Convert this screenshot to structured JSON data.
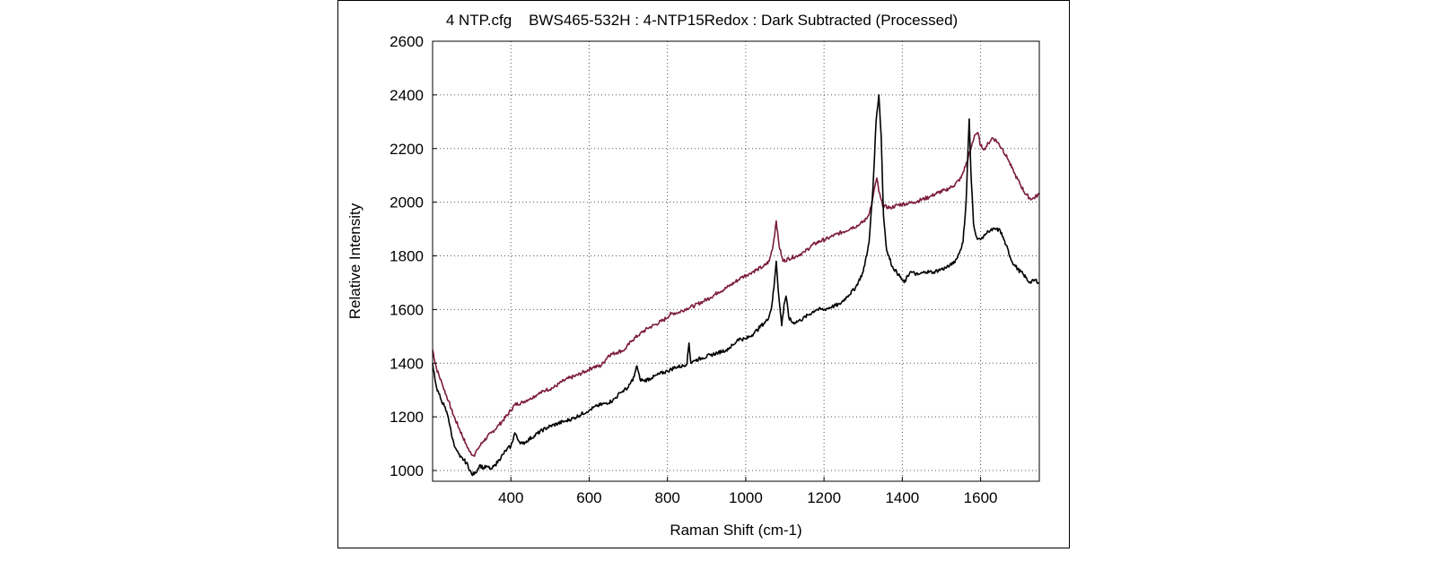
{
  "chart_data": {
    "type": "line",
    "title": "4 NTP.cfg    BWS465-532H : 4-NTP15Redox : Dark Subtracted (Processed)",
    "xlabel": "Raman Shift (cm-1)",
    "ylabel": "Relative Intensity",
    "xlim": [
      200,
      1750
    ],
    "ylim": [
      960,
      2600
    ],
    "xticks": [
      400,
      600,
      800,
      1000,
      1200,
      1400,
      1600
    ],
    "yticks": [
      1000,
      1200,
      1400,
      1600,
      1800,
      2000,
      2200,
      2400,
      2600
    ],
    "grid": true,
    "series": [
      {
        "color": "#7b1b3f",
        "points": [
          [
            200,
            1450
          ],
          [
            210,
            1380
          ],
          [
            225,
            1320
          ],
          [
            240,
            1260
          ],
          [
            255,
            1200
          ],
          [
            270,
            1150
          ],
          [
            285,
            1100
          ],
          [
            295,
            1070
          ],
          [
            305,
            1055
          ],
          [
            315,
            1080
          ],
          [
            330,
            1110
          ],
          [
            350,
            1140
          ],
          [
            370,
            1170
          ],
          [
            390,
            1205
          ],
          [
            410,
            1245
          ],
          [
            430,
            1255
          ],
          [
            450,
            1270
          ],
          [
            470,
            1285
          ],
          [
            490,
            1300
          ],
          [
            510,
            1310
          ],
          [
            530,
            1330
          ],
          [
            550,
            1345
          ],
          [
            570,
            1355
          ],
          [
            590,
            1370
          ],
          [
            610,
            1385
          ],
          [
            630,
            1390
          ],
          [
            650,
            1430
          ],
          [
            670,
            1440
          ],
          [
            690,
            1450
          ],
          [
            710,
            1485
          ],
          [
            730,
            1510
          ],
          [
            750,
            1530
          ],
          [
            770,
            1545
          ],
          [
            790,
            1560
          ],
          [
            810,
            1585
          ],
          [
            830,
            1590
          ],
          [
            850,
            1605
          ],
          [
            870,
            1615
          ],
          [
            890,
            1630
          ],
          [
            910,
            1645
          ],
          [
            930,
            1665
          ],
          [
            950,
            1680
          ],
          [
            970,
            1700
          ],
          [
            990,
            1720
          ],
          [
            1010,
            1735
          ],
          [
            1030,
            1750
          ],
          [
            1045,
            1760
          ],
          [
            1060,
            1780
          ],
          [
            1070,
            1840
          ],
          [
            1078,
            1930
          ],
          [
            1085,
            1840
          ],
          [
            1095,
            1780
          ],
          [
            1110,
            1790
          ],
          [
            1130,
            1800
          ],
          [
            1150,
            1815
          ],
          [
            1170,
            1840
          ],
          [
            1190,
            1855
          ],
          [
            1210,
            1865
          ],
          [
            1230,
            1880
          ],
          [
            1250,
            1890
          ],
          [
            1270,
            1905
          ],
          [
            1290,
            1915
          ],
          [
            1310,
            1940
          ],
          [
            1322,
            1990
          ],
          [
            1330,
            2060
          ],
          [
            1335,
            2090
          ],
          [
            1340,
            2040
          ],
          [
            1350,
            1985
          ],
          [
            1370,
            1980
          ],
          [
            1390,
            1990
          ],
          [
            1410,
            1995
          ],
          [
            1430,
            2000
          ],
          [
            1450,
            2010
          ],
          [
            1470,
            2020
          ],
          [
            1490,
            2035
          ],
          [
            1510,
            2045
          ],
          [
            1530,
            2060
          ],
          [
            1550,
            2090
          ],
          [
            1565,
            2150
          ],
          [
            1575,
            2200
          ],
          [
            1585,
            2250
          ],
          [
            1593,
            2260
          ],
          [
            1600,
            2210
          ],
          [
            1610,
            2200
          ],
          [
            1620,
            2220
          ],
          [
            1630,
            2240
          ],
          [
            1640,
            2230
          ],
          [
            1655,
            2200
          ],
          [
            1670,
            2160
          ],
          [
            1685,
            2110
          ],
          [
            1700,
            2070
          ],
          [
            1715,
            2030
          ],
          [
            1730,
            2010
          ],
          [
            1750,
            2030
          ]
        ]
      },
      {
        "color": "#000000",
        "points": [
          [
            200,
            1400
          ],
          [
            210,
            1310
          ],
          [
            220,
            1270
          ],
          [
            230,
            1240
          ],
          [
            240,
            1200
          ],
          [
            250,
            1120
          ],
          [
            260,
            1080
          ],
          [
            270,
            1050
          ],
          [
            280,
            1040
          ],
          [
            290,
            1020
          ],
          [
            300,
            985
          ],
          [
            310,
            990
          ],
          [
            320,
            1020
          ],
          [
            330,
            1010
          ],
          [
            340,
            1015
          ],
          [
            350,
            1005
          ],
          [
            360,
            1020
          ],
          [
            370,
            1040
          ],
          [
            380,
            1060
          ],
          [
            390,
            1080
          ],
          [
            400,
            1090
          ],
          [
            410,
            1140
          ],
          [
            420,
            1110
          ],
          [
            430,
            1100
          ],
          [
            440,
            1110
          ],
          [
            460,
            1130
          ],
          [
            480,
            1150
          ],
          [
            500,
            1165
          ],
          [
            520,
            1175
          ],
          [
            540,
            1185
          ],
          [
            560,
            1195
          ],
          [
            580,
            1210
          ],
          [
            600,
            1225
          ],
          [
            620,
            1240
          ],
          [
            640,
            1250
          ],
          [
            660,
            1260
          ],
          [
            680,
            1290
          ],
          [
            700,
            1310
          ],
          [
            715,
            1350
          ],
          [
            722,
            1390
          ],
          [
            730,
            1340
          ],
          [
            740,
            1335
          ],
          [
            760,
            1345
          ],
          [
            780,
            1360
          ],
          [
            800,
            1370
          ],
          [
            820,
            1385
          ],
          [
            840,
            1390
          ],
          [
            850,
            1400
          ],
          [
            855,
            1475
          ],
          [
            860,
            1400
          ],
          [
            870,
            1410
          ],
          [
            890,
            1420
          ],
          [
            910,
            1430
          ],
          [
            930,
            1440
          ],
          [
            950,
            1450
          ],
          [
            970,
            1470
          ],
          [
            980,
            1490
          ],
          [
            1000,
            1490
          ],
          [
            1020,
            1510
          ],
          [
            1040,
            1540
          ],
          [
            1055,
            1560
          ],
          [
            1065,
            1600
          ],
          [
            1072,
            1680
          ],
          [
            1078,
            1780
          ],
          [
            1085,
            1640
          ],
          [
            1092,
            1540
          ],
          [
            1098,
            1620
          ],
          [
            1103,
            1650
          ],
          [
            1110,
            1570
          ],
          [
            1120,
            1550
          ],
          [
            1140,
            1560
          ],
          [
            1160,
            1580
          ],
          [
            1180,
            1600
          ],
          [
            1200,
            1600
          ],
          [
            1220,
            1610
          ],
          [
            1240,
            1620
          ],
          [
            1260,
            1650
          ],
          [
            1280,
            1680
          ],
          [
            1300,
            1740
          ],
          [
            1315,
            1850
          ],
          [
            1325,
            2050
          ],
          [
            1333,
            2300
          ],
          [
            1340,
            2400
          ],
          [
            1346,
            2250
          ],
          [
            1352,
            1950
          ],
          [
            1360,
            1820
          ],
          [
            1375,
            1760
          ],
          [
            1390,
            1730
          ],
          [
            1405,
            1700
          ],
          [
            1420,
            1740
          ],
          [
            1440,
            1730
          ],
          [
            1460,
            1740
          ],
          [
            1480,
            1740
          ],
          [
            1500,
            1750
          ],
          [
            1520,
            1760
          ],
          [
            1540,
            1790
          ],
          [
            1555,
            1850
          ],
          [
            1563,
            2000
          ],
          [
            1568,
            2200
          ],
          [
            1571,
            2310
          ],
          [
            1575,
            2120
          ],
          [
            1582,
            1920
          ],
          [
            1590,
            1870
          ],
          [
            1600,
            1860
          ],
          [
            1610,
            1880
          ],
          [
            1620,
            1890
          ],
          [
            1635,
            1900
          ],
          [
            1650,
            1895
          ],
          [
            1665,
            1840
          ],
          [
            1680,
            1780
          ],
          [
            1695,
            1750
          ],
          [
            1710,
            1730
          ],
          [
            1725,
            1700
          ],
          [
            1740,
            1710
          ],
          [
            1750,
            1700
          ]
        ]
      }
    ]
  }
}
